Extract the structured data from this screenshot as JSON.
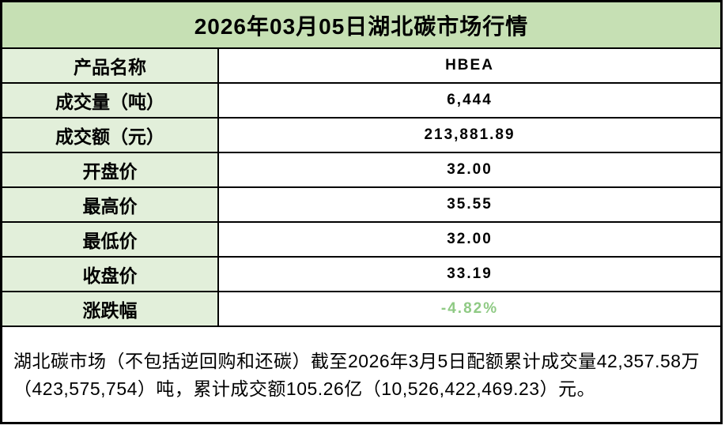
{
  "table": {
    "title": "2026年03月05日湖北碳市场行情",
    "rows": [
      {
        "label": "产品名称",
        "value": "HBEA"
      },
      {
        "label": "成交量（吨）",
        "value": "6,444"
      },
      {
        "label": "成交额（元）",
        "value": "213,881.89"
      },
      {
        "label": "开盘价",
        "value": "32.00"
      },
      {
        "label": "最高价",
        "value": "35.55"
      },
      {
        "label": "最低价",
        "value": "32.00"
      },
      {
        "label": "收盘价",
        "value": "33.19"
      },
      {
        "label": "涨跌幅",
        "value": "-4.82%",
        "highlight": true
      }
    ],
    "footer": "湖北碳市场（不包括逆回购和还碳）截至2026年3月5日配额累计成交量42,357.58万（423,575,754）吨，累计成交额105.26亿（10,526,422,469.23）元。"
  },
  "colors": {
    "title_bg": "#c6e0b4",
    "label_bg": "#e2efda",
    "value_bg": "#ffffff",
    "border": "#000000",
    "change_negative_text": "#8fca84"
  }
}
